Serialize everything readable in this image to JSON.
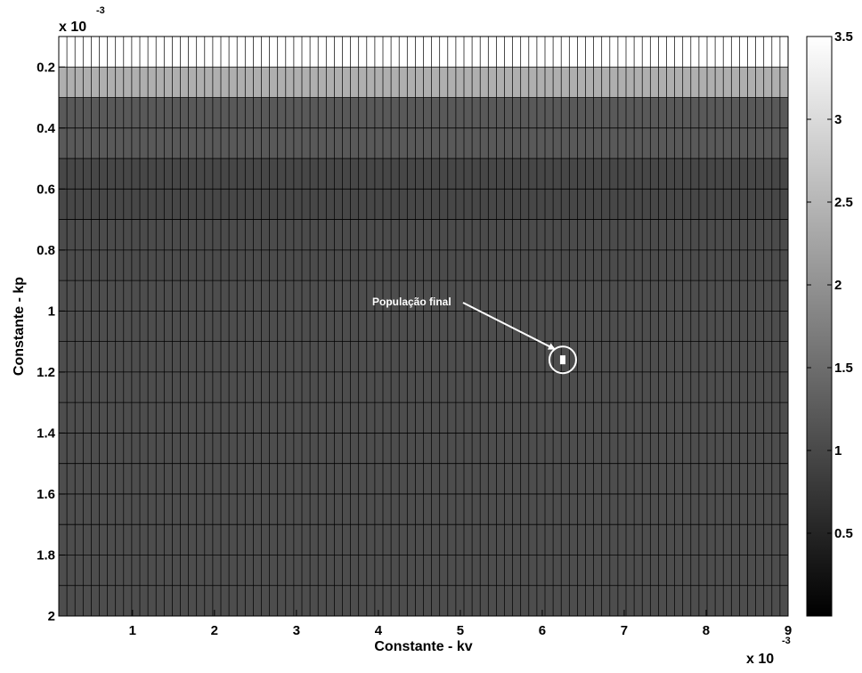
{
  "chart_data": {
    "type": "heatmap",
    "xlabel": "Constante - kv",
    "ylabel": "Constante - kp",
    "x_multiplier": "x 10",
    "x_multiplier_exp": "-3",
    "y_multiplier": "x 10",
    "y_multiplier_exp": "-3",
    "xlim": [
      0.1,
      9
    ],
    "ylim": [
      0.1,
      2
    ],
    "y_reversed": true,
    "x_ticks": [
      1,
      2,
      3,
      4,
      5,
      6,
      7,
      8,
      9
    ],
    "x_tick_labels": [
      "1",
      "2",
      "3",
      "4",
      "5",
      "6",
      "7",
      "8",
      "9"
    ],
    "y_ticks": [
      0.2,
      0.4,
      0.6,
      0.8,
      1,
      1.2,
      1.4,
      1.6,
      1.8,
      2
    ],
    "y_tick_labels": [
      "0.2",
      "0.4",
      "0.6",
      "0.8",
      "1",
      "1.2",
      "1.4",
      "1.6",
      "1.8",
      "2"
    ],
    "x_columns": 90,
    "y_row_edges": [
      0.1,
      0.2,
      0.3,
      0.4,
      0.5,
      0.6,
      0.7,
      0.8,
      0.9,
      1.0,
      1.1,
      1.2,
      1.3,
      1.4,
      1.5,
      1.6,
      1.7,
      1.8,
      1.9,
      2.0
    ],
    "row_values": [
      3.5,
      2.4,
      1.22,
      1.22,
      0.98,
      0.98,
      1.03,
      1.03,
      1.05,
      1.05,
      1.05,
      1.05,
      1.05,
      1.05,
      1.05,
      1.05,
      1.05,
      1.05,
      1.05
    ],
    "grid": true,
    "colorbar": {
      "range": [
        0,
        3.5
      ],
      "ticks": [
        0.5,
        1,
        1.5,
        2,
        2.5,
        3,
        3.5
      ],
      "tick_labels": [
        "0.5",
        "1",
        "1.5",
        "2",
        "2.5",
        "3",
        "3.5"
      ],
      "colormap": "gray"
    },
    "annotation": {
      "text": "População final",
      "point": [
        6.25,
        1.16
      ]
    }
  }
}
